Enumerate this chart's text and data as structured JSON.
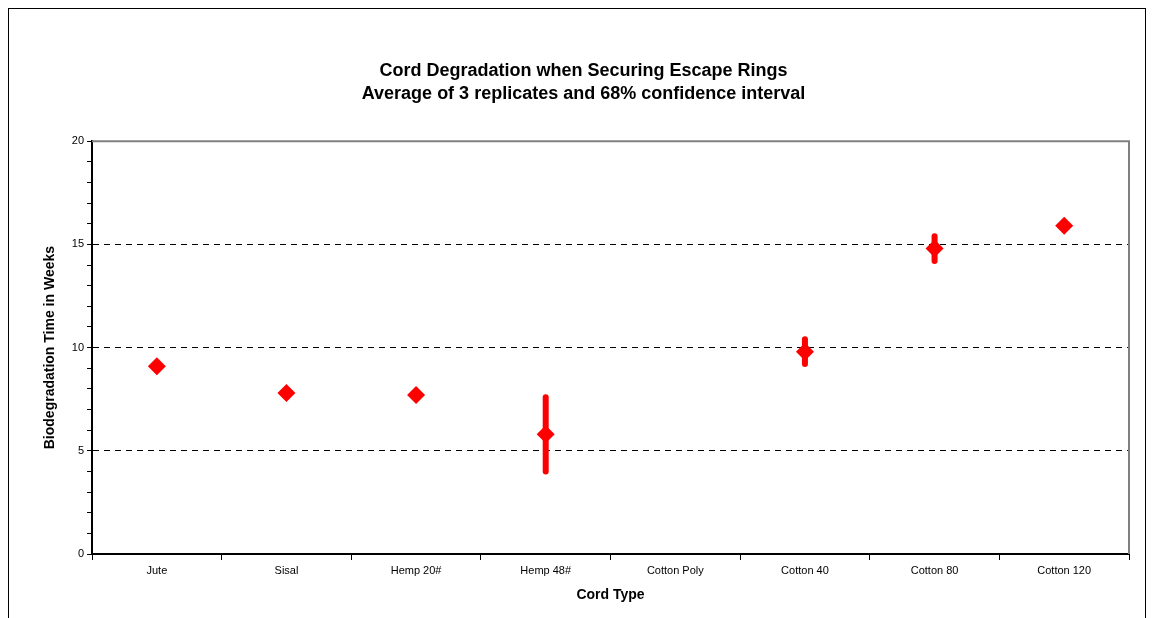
{
  "chart_data": {
    "type": "scatter",
    "title": "Cord Degradation when Securing Escape Rings",
    "subtitle": "Average of 3 replicates and 68% confidence interval",
    "xlabel": "Cord Type",
    "ylabel": "Biodegradation Time in Weeks",
    "categories": [
      "Jute",
      "Sisal",
      "Hemp 20#",
      "Hemp 48#",
      "Cotton Poly",
      "Cotton 40",
      "Cotton 80",
      "Cotton 120"
    ],
    "values": [
      9.1,
      7.8,
      7.7,
      5.8,
      null,
      9.8,
      14.8,
      15.9
    ],
    "errors": [
      null,
      null,
      null,
      1.8,
      null,
      0.6,
      0.6,
      null
    ],
    "color": "#ff0000",
    "marker": "diamond",
    "ylim": [
      0,
      20
    ],
    "yticks": [
      0,
      {
        "value": 1,
        "label": null
      },
      {
        "value": 2,
        "label": null
      },
      {
        "value": 3,
        "label": null
      },
      {
        "value": 4,
        "label": null
      },
      5,
      {
        "value": 6,
        "label": null
      },
      {
        "value": 7,
        "label": null
      },
      {
        "value": 8,
        "label": null
      },
      {
        "value": 9,
        "label": null
      },
      10,
      {
        "value": 11,
        "label": null
      },
      {
        "value": 12,
        "label": null
      },
      {
        "value": 13,
        "label": null
      },
      {
        "value": 14,
        "label": null
      },
      15,
      {
        "value": 16,
        "label": null
      },
      {
        "value": 17,
        "label": null
      },
      {
        "value": 18,
        "label": null
      },
      {
        "value": 19,
        "label": null
      },
      20
    ],
    "grid": "y",
    "line_style": "dashed",
    "legend": false
  }
}
